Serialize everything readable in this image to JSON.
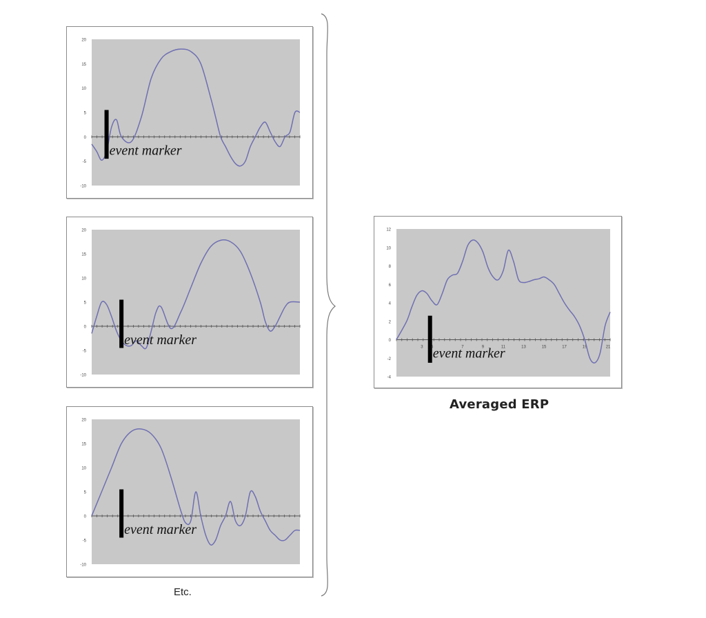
{
  "captions": {
    "etc": "Etc.",
    "averaged": "Averaged ERP"
  },
  "colors": {
    "plot_bg": "#c8c8c8",
    "line": "#6f6fb3",
    "marker": "#000000",
    "axis": "#555555"
  },
  "chart_data": [
    {
      "type": "line",
      "event_marker_label": "event marker",
      "event_marker_x": 1.5,
      "event_marker_range": [
        -4.5,
        5.5
      ],
      "ylim": [
        -10,
        20
      ],
      "yticks": [
        "20",
        "15",
        "10",
        "5",
        "0",
        "-5",
        "-10"
      ],
      "xlim": [
        0,
        21
      ],
      "series": [
        {
          "x": [
            0,
            0.5,
            1,
            1.5,
            2,
            2.5,
            3,
            4,
            5,
            6,
            7,
            8,
            9,
            10,
            11,
            12,
            12.5,
            13,
            13.5,
            14,
            14.5,
            15,
            15.5,
            16,
            16.5,
            17,
            17.5,
            18,
            18.5,
            19,
            19.5,
            20,
            20.5,
            21
          ],
          "y": [
            -1.5,
            -3,
            -4.8,
            -3,
            2,
            3.5,
            0,
            -1,
            4,
            12,
            16,
            17.5,
            18,
            17.5,
            15,
            8,
            4,
            0,
            -2,
            -4,
            -5.5,
            -6,
            -5,
            -2,
            0,
            2,
            3,
            1,
            -1,
            -2,
            0,
            1,
            5,
            5
          ]
        }
      ]
    },
    {
      "type": "line",
      "event_marker_label": "event marker",
      "event_marker_x": 3,
      "event_marker_range": [
        -4.5,
        5.5
      ],
      "ylim": [
        -10,
        20
      ],
      "yticks": [
        "20",
        "15",
        "10",
        "5",
        "0",
        "-5",
        "-10"
      ],
      "xlim": [
        0,
        21
      ],
      "series": [
        {
          "x": [
            0,
            0.5,
            1,
            1.5,
            2,
            2.5,
            3,
            3.5,
            4,
            4.5,
            5,
            5.5,
            6,
            6.5,
            7,
            8,
            9,
            10,
            11,
            12,
            13,
            14,
            15,
            16,
            17,
            17.5,
            18,
            18.5,
            19,
            19.5,
            20,
            21
          ],
          "y": [
            -1.5,
            2,
            5,
            4.5,
            2,
            -1,
            -3,
            -4,
            -4,
            -3,
            -4,
            -4.5,
            -1,
            3,
            4,
            -0.5,
            3,
            8,
            13,
            16.5,
            17.8,
            17.5,
            15.5,
            11,
            5,
            1,
            -1,
            0,
            2,
            4,
            5,
            5
          ]
        }
      ]
    },
    {
      "type": "line",
      "event_marker_label": "event marker",
      "event_marker_x": 3,
      "event_marker_range": [
        -4.5,
        5.5
      ],
      "ylim": [
        -10,
        20
      ],
      "yticks": [
        "20",
        "15",
        "10",
        "5",
        "0",
        "-5",
        "-10"
      ],
      "xlim": [
        0,
        21
      ],
      "series": [
        {
          "x": [
            0,
            1,
            2,
            3,
            4,
            5,
            6,
            7,
            8,
            9,
            9.5,
            10,
            10.5,
            11,
            11.5,
            12,
            12.5,
            13,
            13.5,
            14,
            14.5,
            15,
            15.5,
            16,
            16.5,
            17,
            17.5,
            18,
            18.5,
            19,
            19.5,
            20,
            20.5,
            21
          ],
          "y": [
            0,
            5,
            10,
            15,
            17.5,
            18,
            17,
            14,
            8,
            1,
            -1.5,
            -1,
            5,
            0,
            -4,
            -6,
            -5,
            -2,
            0,
            3,
            -1,
            -2,
            0,
            5,
            4,
            1,
            -1,
            -3,
            -4,
            -5,
            -5,
            -4,
            -3,
            -3
          ]
        }
      ]
    },
    {
      "type": "line",
      "event_marker_label": "event marker",
      "event_marker_x": 3.3,
      "event_marker_range": [
        -2.5,
        2.6
      ],
      "ylim": [
        -4,
        12
      ],
      "yticks": [
        "12",
        "10",
        "8",
        "6",
        "4",
        "2",
        "0",
        "-2",
        "-4"
      ],
      "xlim": [
        0,
        21
      ],
      "xticks_labeled": [
        [
          "3",
          2.5
        ],
        [
          "5",
          3.5
        ],
        [
          "7",
          6.5
        ],
        [
          "9",
          8.5
        ],
        [
          "11",
          10.5
        ],
        [
          "13",
          12.5
        ],
        [
          "15",
          14.5
        ],
        [
          "17",
          16.5
        ],
        [
          "19",
          18.5
        ],
        [
          "21",
          20.8
        ]
      ],
      "series": [
        {
          "x": [
            0,
            1,
            1.5,
            2,
            2.5,
            3,
            3.5,
            4,
            4.5,
            5,
            5.5,
            6,
            6.5,
            7,
            7.5,
            8,
            8.5,
            9,
            9.5,
            10,
            10.5,
            11,
            11.5,
            12,
            12.5,
            13,
            13.5,
            14,
            14.5,
            15,
            15.5,
            16,
            16.5,
            17,
            17.5,
            18,
            18.5,
            19,
            19.5,
            20,
            20.5,
            21
          ],
          "y": [
            0,
            2,
            3.5,
            4.8,
            5.3,
            5,
            4.2,
            3.8,
            5,
            6.5,
            7,
            7.2,
            8.5,
            10.2,
            10.8,
            10.5,
            9.5,
            7.8,
            6.8,
            6.5,
            7.5,
            9.7,
            8.5,
            6.5,
            6.2,
            6.3,
            6.5,
            6.6,
            6.8,
            6.5,
            6,
            5,
            4,
            3.2,
            2.5,
            1.5,
            0,
            -2,
            -2.5,
            -1.5,
            1.5,
            3
          ]
        }
      ]
    }
  ]
}
